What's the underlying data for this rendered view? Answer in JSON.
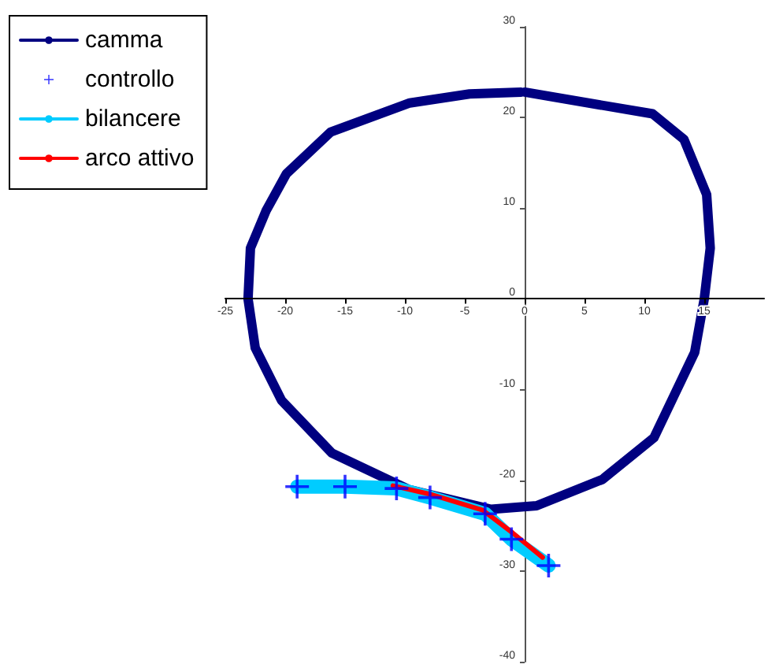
{
  "chart_data": {
    "type": "line",
    "xlim": [
      -25,
      20
    ],
    "xticks": [
      -25,
      -20,
      -15,
      -10,
      -5,
      0,
      5,
      10,
      15
    ],
    "ylim": [
      -40,
      30
    ],
    "yticks": [
      -40,
      -30,
      -20,
      -10,
      0,
      10,
      20,
      30
    ],
    "grid": false,
    "legend": "top left",
    "series": [
      {
        "name": "camma",
        "color": "#000080",
        "x": [
          0,
          10.7,
          13.3,
          15.2,
          15.5,
          15,
          14.2,
          10.8,
          6.5,
          1,
          -2.8,
          -9.7,
          -16.1,
          -20.3,
          -22.5,
          -23.1,
          -22.9,
          -21.6,
          -19.9,
          -16.2,
          -9.6,
          -4.6,
          -0.3
        ],
        "values": [
          22.8,
          20.4,
          17.6,
          11.5,
          5.6,
          0,
          -5.9,
          -15.3,
          -19.9,
          -22.8,
          -23.2,
          -21,
          -17,
          -11.2,
          -5.4,
          0,
          5.6,
          9.7,
          13.8,
          18.4,
          21.6,
          22.6,
          22.8
        ]
      },
      {
        "name": "controllo",
        "type": "scatter",
        "marker": "cross",
        "color": "#0000ff",
        "x": [
          -19,
          -15,
          -10.7,
          -7.9,
          -3.3,
          -1.1,
          2
        ],
        "values": [
          -20.7,
          -20.7,
          -20.9,
          -21.9,
          -23.7,
          -26.5,
          -29.4
        ]
      },
      {
        "name": "bilancere",
        "color": "#00ccff",
        "x": [
          -19,
          -15,
          -10.7,
          -7.9,
          -3.3,
          -1.1,
          2
        ],
        "values": [
          -20.7,
          -20.7,
          -20.9,
          -21.9,
          -23.7,
          -26.5,
          -29.4
        ]
      },
      {
        "name": "arco attivo",
        "color": "#ff0000",
        "x": [
          -11,
          -8,
          -3.5,
          -1,
          1.5
        ],
        "values": [
          -20.6,
          -21.5,
          -23.3,
          -25.8,
          -28.5
        ]
      }
    ]
  }
}
